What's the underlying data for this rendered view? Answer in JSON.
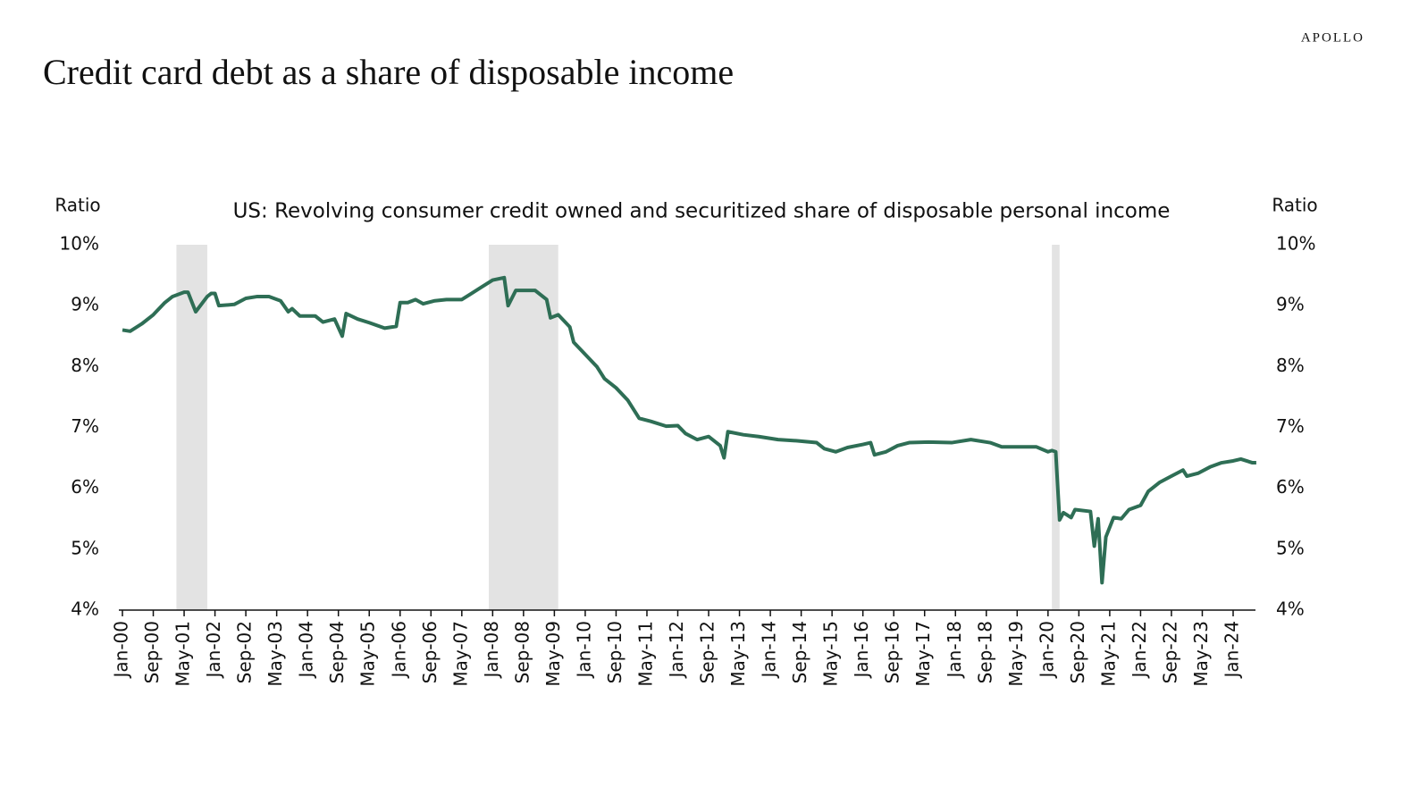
{
  "brand": "APOLLO",
  "chart_data": {
    "type": "line",
    "title": "Credit card debt as a share of disposable income",
    "subtitle": "US: Revolving consumer credit owned and securitized share of disposable personal income",
    "ylabel": "Ratio",
    "y2label": "Ratio",
    "color": "#2e6e55",
    "shade_color": "#e3e3e3",
    "recessions": [
      [
        "2001-03",
        "2001-11"
      ],
      [
        "2007-12",
        "2009-06"
      ],
      [
        "2020-02",
        "2020-04"
      ]
    ],
    "x": [
      "2000-01",
      "2000-03",
      "2000-06",
      "2000-09",
      "2000-12",
      "2001-02",
      "2001-05",
      "2001-06",
      "2001-08",
      "2001-11",
      "2001-12",
      "2002-01",
      "2002-02",
      "2002-06",
      "2002-09",
      "2002-12",
      "2003-03",
      "2003-06",
      "2003-08",
      "2003-09",
      "2003-11",
      "2004-03",
      "2004-05",
      "2004-08",
      "2004-10",
      "2004-11",
      "2005-02",
      "2005-05",
      "2005-09",
      "2005-12",
      "2006-01",
      "2006-03",
      "2006-05",
      "2006-07",
      "2006-10",
      "2007-01",
      "2007-05",
      "2007-07",
      "2007-10",
      "2008-01",
      "2008-04",
      "2008-05",
      "2008-07",
      "2008-09",
      "2008-12",
      "2009-03",
      "2009-04",
      "2009-06",
      "2009-09",
      "2009-10",
      "2010-01",
      "2010-04",
      "2010-06",
      "2010-09",
      "2010-12",
      "2011-03",
      "2011-06",
      "2011-10",
      "2012-01",
      "2012-03",
      "2012-06",
      "2012-09",
      "2012-12",
      "2013-01",
      "2013-02",
      "2013-06",
      "2013-10",
      "2014-03",
      "2014-08",
      "2015-01",
      "2015-03",
      "2015-06",
      "2015-09",
      "2016-01",
      "2016-03",
      "2016-04",
      "2016-07",
      "2016-10",
      "2017-01",
      "2017-06",
      "2017-12",
      "2018-05",
      "2018-10",
      "2019-01",
      "2019-06",
      "2019-10",
      "2020-01",
      "2020-02",
      "2020-03",
      "2020-04",
      "2020-05",
      "2020-07",
      "2020-08",
      "2020-12",
      "2021-01",
      "2021-02",
      "2021-03",
      "2021-04",
      "2021-06",
      "2021-08",
      "2021-10",
      "2022-01",
      "2022-03",
      "2022-06",
      "2022-09",
      "2022-12",
      "2023-01",
      "2023-04",
      "2023-07",
      "2023-10",
      "2024-01",
      "2024-03",
      "2024-06",
      "2024-07"
    ],
    "values": [
      8.6,
      8.58,
      8.7,
      8.85,
      9.05,
      9.15,
      9.22,
      9.22,
      8.9,
      9.15,
      9.2,
      9.2,
      9.0,
      9.02,
      9.12,
      9.15,
      9.15,
      9.08,
      8.9,
      8.95,
      8.83,
      8.83,
      8.73,
      8.78,
      8.5,
      8.87,
      8.78,
      8.72,
      8.63,
      8.66,
      9.05,
      9.05,
      9.1,
      9.03,
      9.08,
      9.1,
      9.1,
      9.18,
      9.3,
      9.42,
      9.46,
      9.0,
      9.25,
      9.25,
      9.25,
      9.1,
      8.8,
      8.85,
      8.65,
      8.4,
      8.2,
      8.0,
      7.8,
      7.65,
      7.45,
      7.15,
      7.1,
      7.02,
      7.03,
      6.9,
      6.8,
      6.85,
      6.7,
      6.5,
      6.93,
      6.88,
      6.85,
      6.8,
      6.78,
      6.75,
      6.65,
      6.6,
      6.67,
      6.72,
      6.75,
      6.55,
      6.6,
      6.7,
      6.75,
      6.76,
      6.75,
      6.8,
      6.75,
      6.68,
      6.68,
      6.68,
      6.6,
      6.62,
      6.6,
      5.48,
      5.6,
      5.52,
      5.65,
      5.62,
      5.05,
      5.5,
      4.45,
      5.2,
      5.52,
      5.5,
      5.65,
      5.72,
      5.95,
      6.1,
      6.2,
      6.3,
      6.2,
      6.25,
      6.35,
      6.42,
      6.45,
      6.48,
      6.42,
      6.42
    ],
    "xlim": [
      "2000-01",
      "2024-07"
    ],
    "xticks": [
      {
        "value": "2000-01",
        "label": "Jan-00"
      },
      {
        "value": "2000-09",
        "label": "Sep-00"
      },
      {
        "value": "2001-05",
        "label": "May-01"
      },
      {
        "value": "2002-01",
        "label": "Jan-02"
      },
      {
        "value": "2002-09",
        "label": "Sep-02"
      },
      {
        "value": "2003-05",
        "label": "May-03"
      },
      {
        "value": "2004-01",
        "label": "Jan-04"
      },
      {
        "value": "2004-09",
        "label": "Sep-04"
      },
      {
        "value": "2005-05",
        "label": "May-05"
      },
      {
        "value": "2006-01",
        "label": "Jan-06"
      },
      {
        "value": "2006-09",
        "label": "Sep-06"
      },
      {
        "value": "2007-05",
        "label": "May-07"
      },
      {
        "value": "2008-01",
        "label": "Jan-08"
      },
      {
        "value": "2008-09",
        "label": "Sep-08"
      },
      {
        "value": "2009-05",
        "label": "May-09"
      },
      {
        "value": "2010-01",
        "label": "Jan-10"
      },
      {
        "value": "2010-09",
        "label": "Sep-10"
      },
      {
        "value": "2011-05",
        "label": "May-11"
      },
      {
        "value": "2012-01",
        "label": "Jan-12"
      },
      {
        "value": "2012-09",
        "label": "Sep-12"
      },
      {
        "value": "2013-05",
        "label": "May-13"
      },
      {
        "value": "2014-01",
        "label": "Jan-14"
      },
      {
        "value": "2014-09",
        "label": "Sep-14"
      },
      {
        "value": "2015-05",
        "label": "May-15"
      },
      {
        "value": "2016-01",
        "label": "Jan-16"
      },
      {
        "value": "2016-09",
        "label": "Sep-16"
      },
      {
        "value": "2017-05",
        "label": "May-17"
      },
      {
        "value": "2018-01",
        "label": "Jan-18"
      },
      {
        "value": "2018-09",
        "label": "Sep-18"
      },
      {
        "value": "2019-05",
        "label": "May-19"
      },
      {
        "value": "2020-01",
        "label": "Jan-20"
      },
      {
        "value": "2020-09",
        "label": "Sep-20"
      },
      {
        "value": "2021-05",
        "label": "May-21"
      },
      {
        "value": "2022-01",
        "label": "Jan-22"
      },
      {
        "value": "2022-09",
        "label": "Sep-22"
      },
      {
        "value": "2023-05",
        "label": "May-23"
      },
      {
        "value": "2024-01",
        "label": "Jan-24"
      }
    ],
    "ylim": [
      4,
      10
    ],
    "yticks": [
      {
        "value": 4,
        "label": "4%"
      },
      {
        "value": 5,
        "label": "5%"
      },
      {
        "value": 6,
        "label": "6%"
      },
      {
        "value": 7,
        "label": "7%"
      },
      {
        "value": 8,
        "label": "8%"
      },
      {
        "value": 9,
        "label": "9%"
      },
      {
        "value": 10,
        "label": "10%"
      }
    ],
    "y2lim": [
      4,
      10
    ],
    "y2ticks": [
      {
        "value": 4,
        "label": "4%"
      },
      {
        "value": 5,
        "label": "5%"
      },
      {
        "value": 6,
        "label": "6%"
      },
      {
        "value": 7,
        "label": "7%"
      },
      {
        "value": 8,
        "label": "8%"
      },
      {
        "value": 9,
        "label": "9%"
      },
      {
        "value": 10,
        "label": "10%"
      }
    ]
  }
}
